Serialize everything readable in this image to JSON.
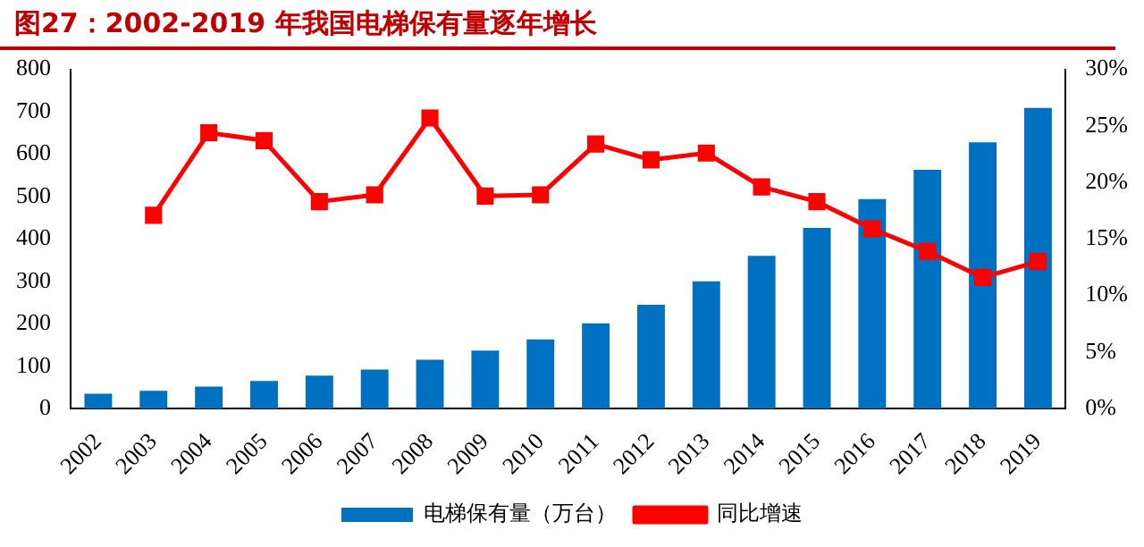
{
  "chart_data": {
    "type": "bar",
    "title": "图27：2002-2019 年我国电梯保有量逐年增长",
    "categories": [
      "2002",
      "2003",
      "2004",
      "2005",
      "2006",
      "2007",
      "2008",
      "2009",
      "2010",
      "2011",
      "2012",
      "2013",
      "2014",
      "2015",
      "2016",
      "2017",
      "2018",
      "2019"
    ],
    "series": [
      {
        "name": "电梯保有量（万台）",
        "color": "#0070c0",
        "values": [
          35,
          42,
          52,
          65,
          78,
          92,
          115,
          137,
          163,
          201,
          245,
          300,
          360,
          426,
          494,
          563,
          628,
          709
        ]
      },
      {
        "name": "同比增速",
        "type": "line",
        "axis": "y2",
        "color": "#ff0000",
        "marker": "square",
        "values": [
          null,
          17.1,
          24.4,
          23.7,
          18.3,
          18.9,
          25.7,
          18.8,
          18.9,
          23.4,
          22.0,
          22.6,
          19.6,
          18.3,
          15.9,
          13.9,
          11.6,
          13.0
        ]
      }
    ],
    "ylim": [
      0,
      800
    ],
    "yticks": [
      0,
      100,
      200,
      300,
      400,
      500,
      600,
      700,
      800
    ],
    "y2lim": [
      0,
      30
    ],
    "y2ticks": [
      {
        "value": 0,
        "label": "0%"
      },
      {
        "value": 5,
        "label": "5%"
      },
      {
        "value": 10,
        "label": "10%"
      },
      {
        "value": 15,
        "label": "15%"
      },
      {
        "value": 20,
        "label": "20%"
      },
      {
        "value": 25,
        "label": "25%"
      },
      {
        "value": 30,
        "label": "30%"
      }
    ],
    "grid": false,
    "legend": "bottom"
  }
}
